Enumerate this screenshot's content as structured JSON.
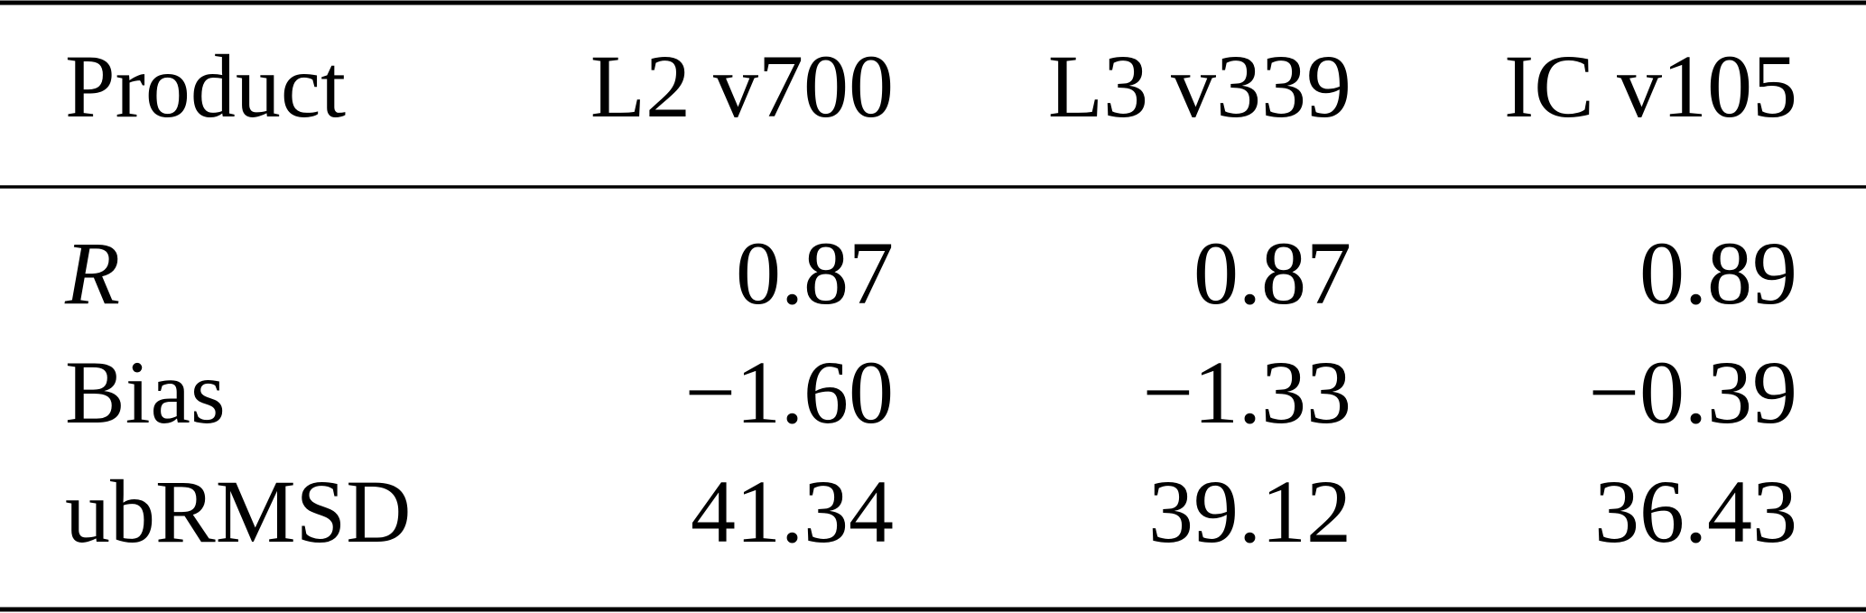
{
  "table": {
    "header": [
      "Product",
      "L2 v700",
      "L3 v339",
      "IC v105"
    ],
    "rows": [
      [
        "R",
        "0.87",
        "0.87",
        "0.89"
      ],
      [
        "Bias",
        "−1.60",
        "−1.33",
        "−0.39"
      ],
      [
        "ubRMSD",
        "41.34",
        "39.12",
        "36.43"
      ]
    ]
  }
}
